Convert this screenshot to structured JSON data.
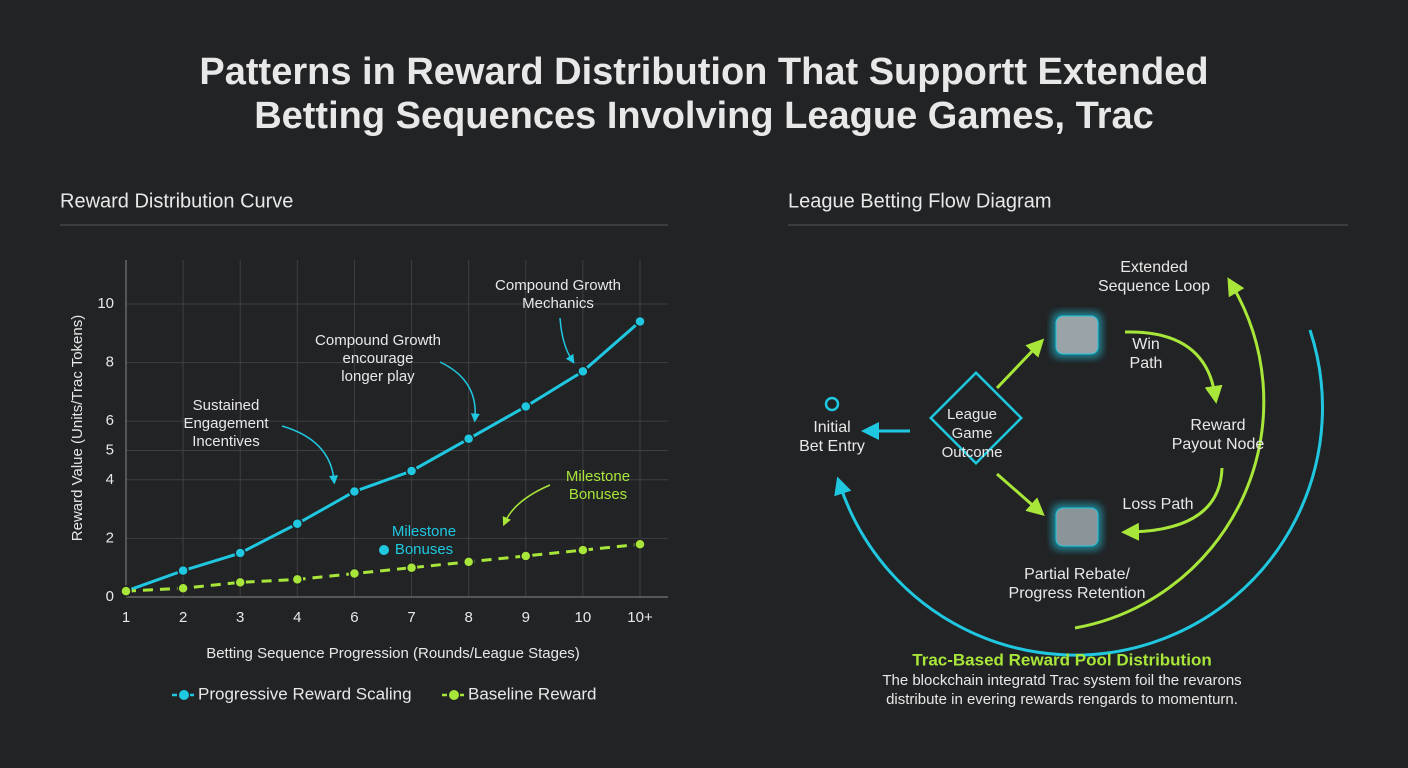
{
  "header": {
    "title_lines": [
      "Patterns in Reward Distribution That Supportt Extended",
      "Betting Sequences Involving League Games, Trac"
    ]
  },
  "chart_data": {
    "type": "line",
    "title": "Reward Distribution Curve",
    "x_label": "Betting Sequence Progression (Rounds/League Stages)",
    "y_label": "Reward Value (Units/Trac Tokens)",
    "categories": [
      "1",
      "2",
      "3",
      "4",
      "6",
      "7",
      "8",
      "9",
      "10",
      "10+"
    ],
    "series": [
      {
        "name": "Progressive Reward Scaling",
        "color": "#1fc8e0",
        "dash": false,
        "values": [
          0.2,
          0.9,
          1.5,
          2.5,
          3.6,
          4.3,
          5.4,
          6.5,
          7.7,
          9.4
        ]
      },
      {
        "name": "Baseline Reward",
        "color": "#a8e63a",
        "dash": true,
        "values": [
          0.2,
          0.3,
          0.5,
          0.6,
          0.8,
          1.0,
          1.2,
          1.4,
          1.6,
          1.8
        ]
      }
    ],
    "ylim": [
      0,
      11.5
    ],
    "yticks": [
      0,
      2,
      4,
      5,
      6,
      8,
      10
    ],
    "grid": true,
    "annotations": [
      {
        "lines": [
          "Compound Growth",
          "Mechanics"
        ],
        "color": "#e8e8e8"
      },
      {
        "lines": [
          "Compound Growth",
          "encourage",
          "longer play"
        ],
        "color": "#e8e8e8"
      },
      {
        "lines": [
          "Sustained",
          "Engagement",
          "Incentives"
        ],
        "color": "#e8e8e8"
      },
      {
        "lines": [
          "Milestone",
          "Bonuses"
        ],
        "color": "#a8e63a"
      },
      {
        "lines": [
          "Milestone",
          "Bonuses"
        ],
        "color": "#1fc8e0"
      }
    ]
  },
  "diagram": {
    "title": "League Betting Flow Diagram",
    "nodes": [
      {
        "lines": [
          "Initial",
          "Bet Entry"
        ]
      },
      {
        "lines": [
          "League",
          "Game",
          "Outcome"
        ]
      },
      {
        "lines": [
          "Win",
          "Path"
        ]
      },
      {
        "lines": [
          "Reward",
          "Payout Node"
        ]
      },
      {
        "lines": [
          "Loss Path"
        ]
      },
      {
        "lines": [
          "Partial Rebate/",
          "Progress Retention"
        ]
      },
      {
        "lines": [
          "Extended",
          "Sequence Loop"
        ]
      }
    ],
    "footer": {
      "title": "Trac-Based Reward Pool Distribution",
      "lines": [
        "The blockchain integratd Trac system foil the revarons",
        "distribute in evering rewards rengards to momenturn."
      ]
    }
  }
}
